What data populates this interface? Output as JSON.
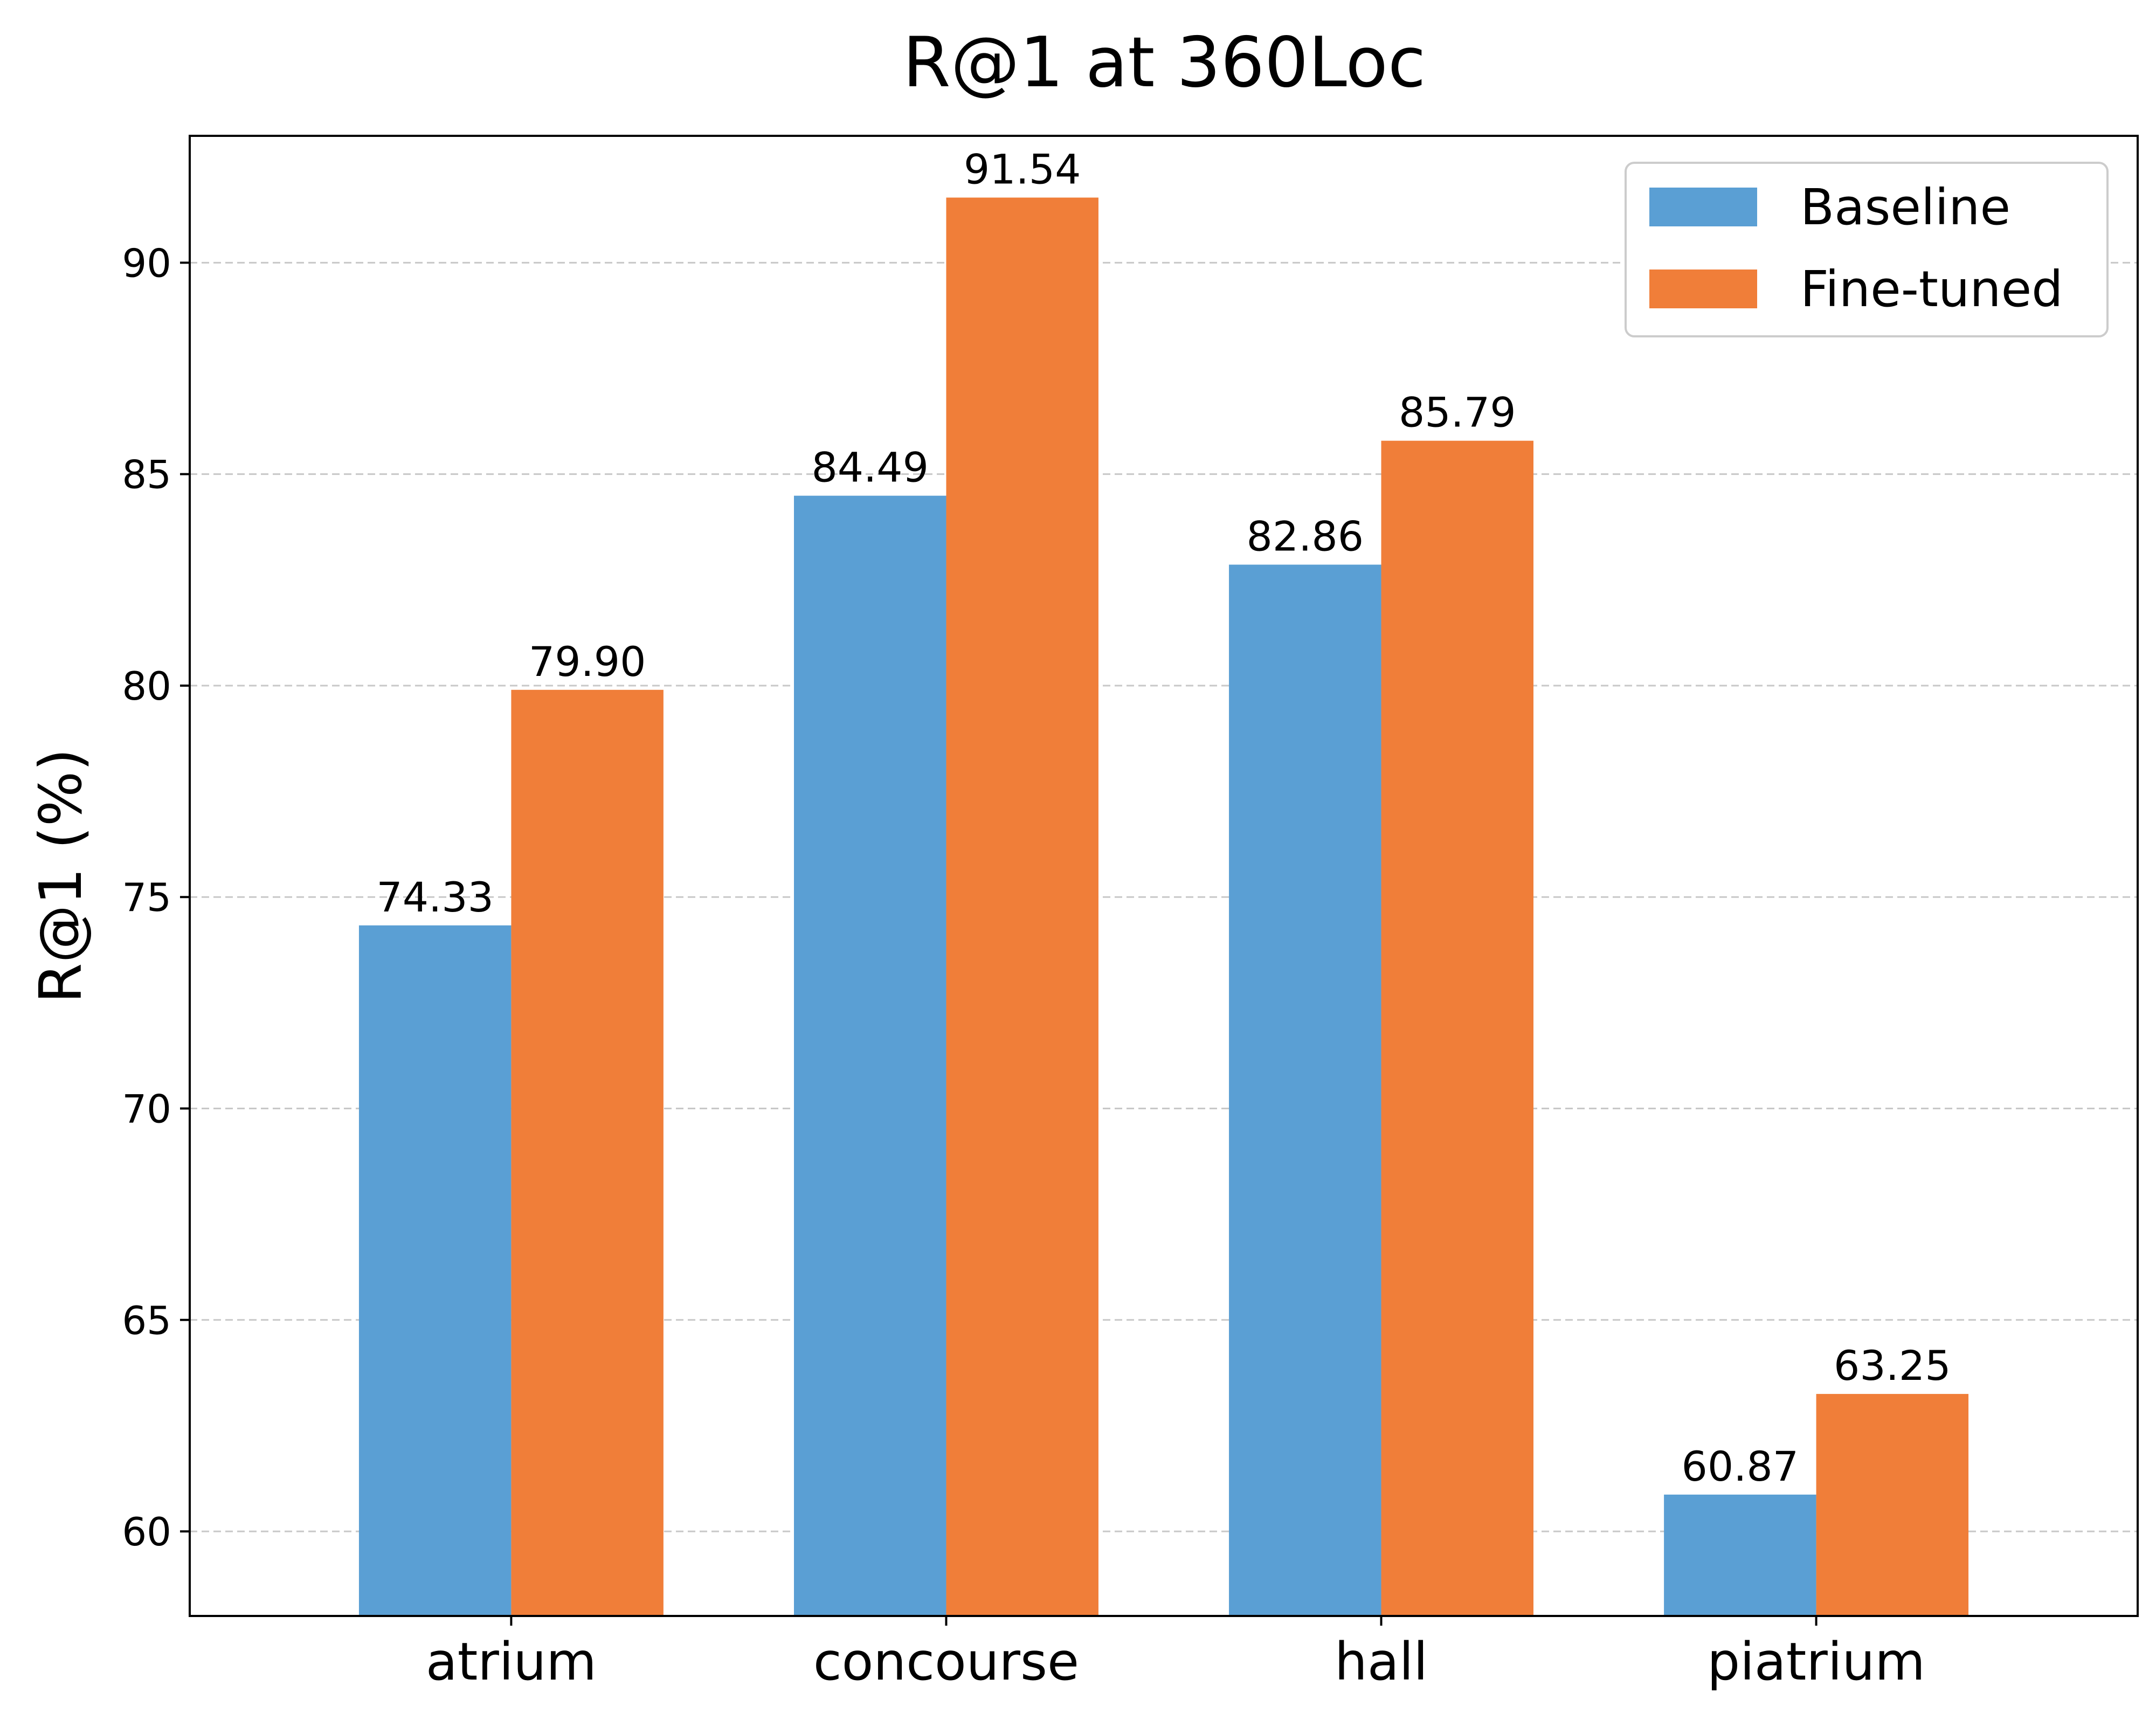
{
  "chart_data": {
    "type": "bar",
    "title": "R@1 at 360Loc",
    "xlabel": "",
    "ylabel": "R@1 (%)",
    "categories": [
      "atrium",
      "concourse",
      "hall",
      "piatrium"
    ],
    "series": [
      {
        "name": "Baseline",
        "values": [
          74.33,
          84.49,
          82.86,
          60.87
        ],
        "labels": [
          "74.33",
          "84.49",
          "82.86",
          "60.87"
        ]
      },
      {
        "name": "Fine-tuned",
        "values": [
          79.9,
          91.54,
          85.79,
          63.25
        ],
        "labels": [
          "79.90",
          "91.54",
          "85.79",
          "63.25"
        ]
      }
    ],
    "yticks": [
      60,
      65,
      70,
      75,
      80,
      85,
      90
    ],
    "ylim": [
      58,
      93
    ],
    "grid": "horizontal dashed",
    "legend_position": "top-right",
    "colors": {
      "Baseline": "#5a9fd4",
      "Fine-tuned": "#f07e39"
    }
  }
}
